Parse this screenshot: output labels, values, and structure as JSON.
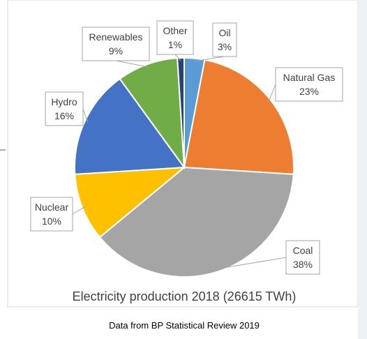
{
  "chart_data": {
    "type": "pie",
    "title": "Electricity production 2018 (26615 TWh)",
    "slices": [
      {
        "label": "Oil",
        "value": 3,
        "display": "3%",
        "color": "#5b9bd5"
      },
      {
        "label": "Natural Gas",
        "value": 23,
        "display": "23%",
        "color": "#ed7d31"
      },
      {
        "label": "Coal",
        "value": 38,
        "display": "38%",
        "color": "#a5a5a5"
      },
      {
        "label": "Nuclear",
        "value": 10,
        "display": "10%",
        "color": "#ffc000"
      },
      {
        "label": "Hydro",
        "value": 16,
        "display": "16%",
        "color": "#4472c4"
      },
      {
        "label": "Renewables",
        "value": 9,
        "display": "9%",
        "color": "#70ad47"
      },
      {
        "label": "Other",
        "value": 1,
        "display": "1%",
        "color": "#264478"
      }
    ],
    "start": "12 o'clock",
    "direction": "clockwise",
    "legend": "none"
  },
  "source_note": "Data from BP Statistical Review 2019",
  "colors": {
    "slice_border": "#ffffff",
    "frame_border": "#d9d9d9",
    "label_text": "#404040",
    "leader_line": "#a6a6a6"
  }
}
